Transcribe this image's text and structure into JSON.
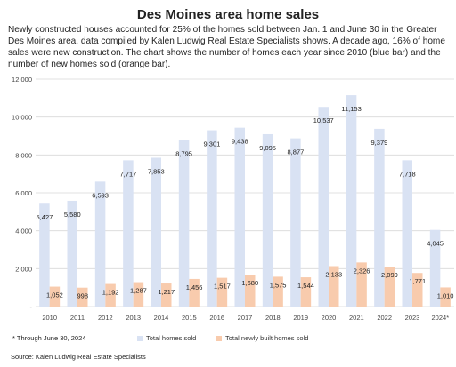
{
  "header": {
    "title": "Des Moines area home sales",
    "subtitle": "Newly constructed houses accounted for 25% of the homes sold between Jan. 1 and June 30  in the  Greater Des Moines area, data compiled by Kalen Ludwig Real Estate Specialists shows. A decade ago, 16% of home sales were new construction. The chart shows the number of homes each year since 2010 (blue bar) and the number of new homes sold (orange bar)."
  },
  "footer": {
    "footnote": "* Through June 30, 2024",
    "source": "Source: Kalen Ludwig Real Estate Specialists"
  },
  "colors": {
    "total": "#d9e2f3",
    "new": "#f8cbad",
    "grid": "#d9d9d9",
    "text": "#222222"
  },
  "chart_data": {
    "type": "bar",
    "categories": [
      "2010",
      "2011",
      "2012",
      "2013",
      "2014",
      "2015",
      "2016",
      "2017",
      "2018",
      "2019",
      "2020",
      "2021",
      "2022",
      "2023",
      "2024*"
    ],
    "series": [
      {
        "name": "Total homes sold",
        "values": [
          5427,
          5580,
          6593,
          7717,
          7853,
          8795,
          9301,
          9438,
          9095,
          8877,
          10537,
          11153,
          9379,
          7718,
          4045
        ],
        "labels": [
          "5,427",
          "5,580",
          "6,593",
          "7,717",
          "7,853",
          "8,795",
          "9,301",
          "9,438",
          "9,095",
          "8,877",
          "10,537",
          "11,153",
          "9,379",
          "7,718",
          "4,045"
        ]
      },
      {
        "name": "Total newly built homes sold",
        "values": [
          1052,
          998,
          1192,
          1287,
          1217,
          1456,
          1517,
          1680,
          1575,
          1544,
          2133,
          2326,
          2099,
          1771,
          1010
        ],
        "labels": [
          "1,052",
          "998",
          "1,192",
          "1,287",
          "1,217",
          "1,456",
          "1,517",
          "1,680",
          "1,575",
          "1,544",
          "2,133",
          "2,326",
          "2,099",
          "1,771",
          "1,010"
        ]
      }
    ],
    "ylim": [
      0,
      12000
    ],
    "yticks": [
      0,
      2000,
      4000,
      6000,
      8000,
      10000,
      12000
    ],
    "ytick_labels": [
      "-",
      "2,000",
      "4,000",
      "6,000",
      "8,000",
      "10,000",
      "12,000"
    ],
    "grid": true,
    "legend": "bottom"
  }
}
